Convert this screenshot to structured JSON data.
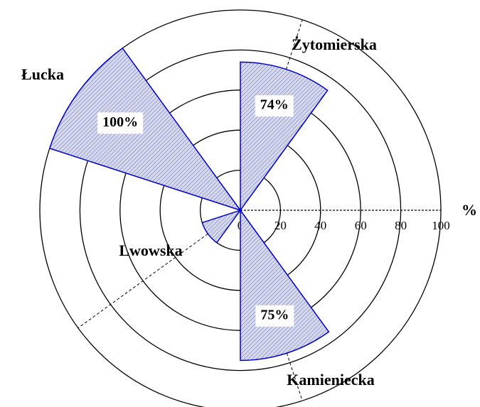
{
  "chart_data": {
    "type": "polar-bar",
    "categories": [
      "Żytomierska",
      null,
      null,
      null,
      "Kamieniecka",
      null,
      "Lwowska",
      null,
      "Łucka",
      null
    ],
    "values": [
      74,
      null,
      null,
      null,
      75,
      null,
      20,
      null,
      100,
      null
    ],
    "value_labels": [
      "74%",
      null,
      null,
      null,
      "75%",
      null,
      null,
      null,
      "100%",
      null
    ],
    "color": "#0000cc",
    "ylim": [
      0,
      100
    ],
    "yticks": [
      0,
      20,
      40,
      60,
      80,
      100
    ],
    "ylabel": "%",
    "grid": true
  }
}
